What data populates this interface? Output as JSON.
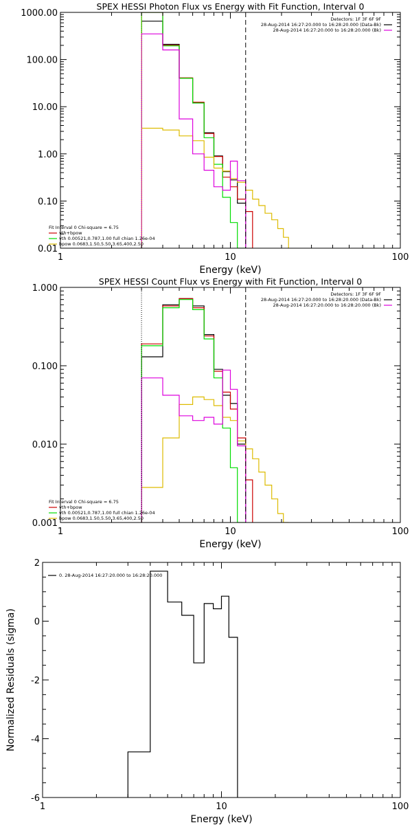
{
  "colors": {
    "data": "#000000",
    "total": "#cc0000",
    "vth": "#00dd00",
    "bpow": "#ddbb00",
    "bk": "#dd00dd",
    "axis": "#000000"
  },
  "chart_data": [
    {
      "type": "line",
      "id": "photon",
      "title": "SPEX HESSI Photon Flux vs Energy with Fit Function, Interval 0",
      "xlabel": "Energy (keV)",
      "ylabel": "",
      "xscale": "log",
      "yscale": "log",
      "xlim": [
        1,
        100
      ],
      "ylim": [
        0.01,
        1000
      ],
      "xticks": [
        {
          "v": 1,
          "label": "1"
        },
        {
          "v": 10,
          "label": "10"
        },
        {
          "v": 100,
          "label": "100"
        }
      ],
      "yticks": [
        {
          "v": 0.01,
          "label": "0.01"
        },
        {
          "v": 0.1,
          "label": "0.10"
        },
        {
          "v": 1,
          "label": "1.00"
        },
        {
          "v": 10,
          "label": "10.00"
        },
        {
          "v": 100,
          "label": "100.00"
        },
        {
          "v": 1000,
          "label": "1000.00"
        }
      ],
      "vlines": [
        {
          "x": 3,
          "style": "dotted",
          "color": "#ddbb00"
        },
        {
          "x": 12.3,
          "style": "dashed",
          "color": "#000000"
        }
      ],
      "edges": [
        3,
        4,
        5,
        6,
        7,
        8,
        9,
        10,
        11,
        12.3,
        13.5,
        14.7,
        16,
        17.5,
        19,
        20.5,
        22
      ],
      "series": [
        {
          "name": "",
          "color": "#000000",
          "values": [
            650,
            210,
            40,
            12,
            2.8,
            0.9,
            0.42,
            0.28,
            0.09
          ]
        },
        {
          "name": "vth+bpow",
          "color": "#cc0000",
          "values": [
            1000,
            200,
            41,
            12.5,
            2.7,
            0.88,
            0.32,
            0.2,
            0.11,
            0.06
          ]
        },
        {
          "name": "vth 0.00521,0.787,1.00 full chian 1.26e-04",
          "color": "#00dd00",
          "values": [
            1000,
            195,
            40,
            12,
            2.2,
            0.6,
            0.12,
            0.035,
            0.005
          ]
        },
        {
          "name": "bpow 0.0683,1.50,5.50,3.65,400,2.50",
          "color": "#ddbb00",
          "values": [
            3.5,
            3.2,
            2.4,
            1.9,
            0.85,
            0.5,
            0.43,
            0.3,
            0.25,
            0.17,
            0.11,
            0.08,
            0.055,
            0.04,
            0.026,
            0.017
          ]
        },
        {
          "name": "",
          "color": "#dd00dd",
          "values": [
            350,
            160,
            5.5,
            1.0,
            0.45,
            0.2,
            0.17,
            0.7,
            0.27
          ]
        }
      ],
      "header": [
        {
          "text": "Detectors: 1F 3F 6F 9F",
          "color": "#000000"
        },
        {
          "text": "28-Aug-2014 16:27:20.000 to 16:28:20.000 (Data-Bk)",
          "color": "#000000"
        },
        {
          "text": "28-Aug-2014 16:27:20.000 to 16:28:20.000 (Bk)",
          "color": "#dd00dd"
        }
      ],
      "fit_info": "Fit Interval 0   Chi-square = 6.75",
      "legend": [
        {
          "series": 1,
          "label": "vth+bpow"
        },
        {
          "series": 2,
          "label": "vth 0.00521,0.787,1.00 full chian 1.26e-04"
        },
        {
          "series": 3,
          "label": "bpow 0.0683,1.50,5.50,3.65,400,2.50"
        }
      ]
    },
    {
      "type": "line",
      "id": "count",
      "title": "SPEX HESSI Count Flux vs Energy with Fit Function, Interval 0",
      "xlabel": "Energy (keV)",
      "ylabel": "",
      "xscale": "log",
      "yscale": "log",
      "xlim": [
        1,
        100
      ],
      "ylim": [
        0.001,
        1
      ],
      "xticks": [
        {
          "v": 1,
          "label": "1"
        },
        {
          "v": 10,
          "label": "10"
        },
        {
          "v": 100,
          "label": "100"
        }
      ],
      "yticks": [
        {
          "v": 0.001,
          "label": "0.001"
        },
        {
          "v": 0.01,
          "label": "0.010"
        },
        {
          "v": 0.1,
          "label": "0.100"
        },
        {
          "v": 1,
          "label": "1.000"
        }
      ],
      "vlines": [
        {
          "x": 3,
          "style": "dotted",
          "color": "#000000"
        },
        {
          "x": 12.3,
          "style": "dashed",
          "color": "#000000"
        }
      ],
      "edges": [
        3,
        4,
        5,
        6,
        7,
        8,
        9,
        10,
        11,
        12.3,
        13.5,
        14.7,
        16,
        17.5,
        19,
        20.5,
        22
      ],
      "series": [
        {
          "name": "",
          "color": "#000000",
          "values": [
            0.13,
            0.6,
            0.72,
            0.58,
            0.25,
            0.09,
            0.042,
            0.033,
            0.01
          ]
        },
        {
          "name": "vth+bpow",
          "color": "#cc0000",
          "values": [
            0.19,
            0.58,
            0.72,
            0.55,
            0.24,
            0.085,
            0.046,
            0.028,
            0.012,
            0.0035
          ]
        },
        {
          "name": "vth 0.00521,0.787,1.00 full chian 1.26e-04",
          "color": "#00dd00",
          "values": [
            0.18,
            0.55,
            0.7,
            0.52,
            0.22,
            0.07,
            0.016,
            0.005,
            0.001
          ]
        },
        {
          "name": "bpow 0.0683,1.50,5.50,3.65,400,2.50",
          "color": "#ddbb00",
          "values": [
            0.0028,
            0.012,
            0.032,
            0.04,
            0.037,
            0.031,
            0.022,
            0.02,
            0.011,
            0.0087,
            0.0065,
            0.0044,
            0.003,
            0.002,
            0.0013,
            0.001
          ]
        },
        {
          "name": "",
          "color": "#dd00dd",
          "values": [
            0.07,
            0.042,
            0.023,
            0.02,
            0.022,
            0.018,
            0.088,
            0.05,
            0.0095
          ]
        }
      ],
      "header": [
        {
          "text": "Detectors: 1F 3F 6F 9F",
          "color": "#000000"
        },
        {
          "text": "28-Aug-2014 16:27:20.000 to 16:28:20.000 (Data-Bk)",
          "color": "#000000"
        },
        {
          "text": "28-Aug-2014 16:27:20.000 to 16:28:20.000 (Bk)",
          "color": "#dd00dd"
        }
      ],
      "fit_info": "Fit Interval 0   Chi-square = 6.75",
      "legend": [
        {
          "series": 1,
          "label": "vth+bpow"
        },
        {
          "series": 2,
          "label": "vth 0.00521,0.787,1.00 full chian 1.26e-04"
        },
        {
          "series": 3,
          "label": "bpow 0.0683,1.50,5.50,3.65,400,2.50"
        }
      ]
    },
    {
      "type": "line",
      "id": "resid",
      "title": "",
      "xlabel": "Energy (keV)",
      "ylabel": "Normalized Residuals (sigma)",
      "xscale": "log",
      "yscale": "linear",
      "xlim": [
        1,
        100
      ],
      "ylim": [
        -6,
        2
      ],
      "xticks": [
        {
          "v": 1,
          "label": "1"
        },
        {
          "v": 10,
          "label": "10"
        },
        {
          "v": 100,
          "label": "100"
        }
      ],
      "yticks": [
        {
          "v": -6,
          "label": "-6"
        },
        {
          "v": -4,
          "label": "-4"
        },
        {
          "v": -2,
          "label": "-2"
        },
        {
          "v": 0,
          "label": "0"
        },
        {
          "v": 2,
          "label": "2"
        }
      ],
      "vlines": [],
      "edges": [
        3,
        4,
        5,
        6,
        7,
        8,
        9,
        10,
        11,
        12.3
      ],
      "series": [
        {
          "name": "0. 28-Aug-2014 16:27:20.000 to 16:28:20.000",
          "color": "#000000",
          "values": [
            -4.45,
            1.7,
            0.65,
            0.2,
            -1.42,
            0.6,
            0.42,
            0.85,
            -0.55
          ]
        }
      ],
      "header": [],
      "fit_info": "",
      "legend": [
        {
          "series": 0,
          "label": "0. 28-Aug-2014 16:27:20.000 to 16:28:20.000"
        }
      ]
    }
  ]
}
